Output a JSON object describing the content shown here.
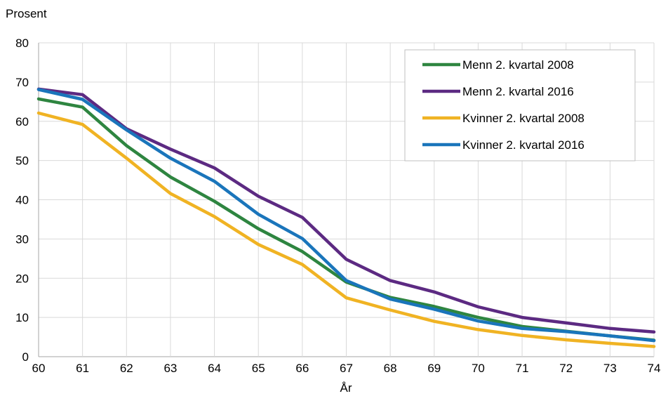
{
  "chart_data": {
    "type": "line",
    "title": "",
    "xlabel": "År",
    "ylabel": "Prosent",
    "x": [
      60,
      61,
      62,
      63,
      64,
      65,
      66,
      67,
      68,
      69,
      70,
      71,
      72,
      73,
      74
    ],
    "xlim": [
      60,
      74
    ],
    "ylim": [
      0,
      80
    ],
    "yticks": [
      0,
      10,
      20,
      30,
      40,
      50,
      60,
      70,
      80
    ],
    "grid": true,
    "legend_position": "top-right",
    "series": [
      {
        "name": "Menn 2. kvartal 2008",
        "color": "#2e8540",
        "values": [
          65.7,
          63.6,
          53.8,
          45.8,
          39.6,
          32.6,
          26.8,
          19.0,
          15.1,
          12.8,
          10.0,
          7.7,
          6.5,
          5.3,
          4.2
        ]
      },
      {
        "name": "Menn 2. kvartal 2016",
        "color": "#5c2a82",
        "values": [
          68.2,
          66.8,
          58.1,
          52.9,
          48.1,
          40.9,
          35.5,
          24.8,
          19.4,
          16.5,
          12.7,
          10.0,
          8.6,
          7.2,
          6.3
        ]
      },
      {
        "name": "Kvinner 2. kvartal 2008",
        "color": "#f0b323",
        "values": [
          62.1,
          59.2,
          50.6,
          41.6,
          35.7,
          28.6,
          23.5,
          15.0,
          11.9,
          9.0,
          6.9,
          5.4,
          4.3,
          3.4,
          2.6
        ]
      },
      {
        "name": "Kvinner 2. kvartal 2016",
        "color": "#1a75bb",
        "values": [
          68.1,
          65.6,
          57.8,
          50.6,
          44.7,
          36.3,
          30.1,
          19.4,
          14.7,
          12.1,
          9.1,
          7.2,
          6.4,
          5.3,
          4.1
        ]
      }
    ]
  }
}
